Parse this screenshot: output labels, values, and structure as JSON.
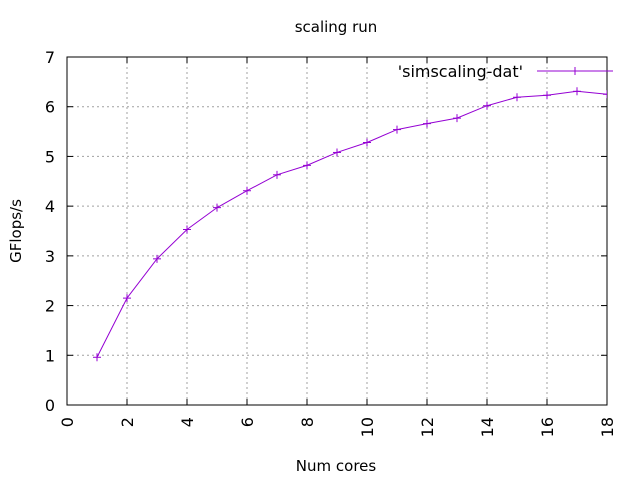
{
  "chart_data": {
    "type": "line",
    "title": "scaling run",
    "xlabel": "Num cores",
    "ylabel": "GFlops/s",
    "xlim": [
      0,
      18
    ],
    "ylim": [
      0,
      7
    ],
    "xticks": [
      "0",
      "2",
      "4",
      "6",
      "8",
      "10",
      "12",
      "14",
      "16",
      "18"
    ],
    "yticks": [
      "0",
      "1",
      "2",
      "3",
      "4",
      "5",
      "6",
      "7"
    ],
    "grid": true,
    "legend_position": "top-right",
    "series": [
      {
        "name": "'simscaling-dat'",
        "color": "#9400d3",
        "marker": "plus",
        "x": [
          1,
          2,
          3,
          4,
          5,
          6,
          7,
          8,
          9,
          10,
          11,
          12,
          13,
          14,
          15,
          16,
          17,
          18
        ],
        "y": [
          0.96,
          2.15,
          2.94,
          3.53,
          3.97,
          4.31,
          4.63,
          4.82,
          5.08,
          5.28,
          5.54,
          5.66,
          5.77,
          6.02,
          6.19,
          6.23,
          6.31,
          6.25
        ]
      }
    ]
  }
}
